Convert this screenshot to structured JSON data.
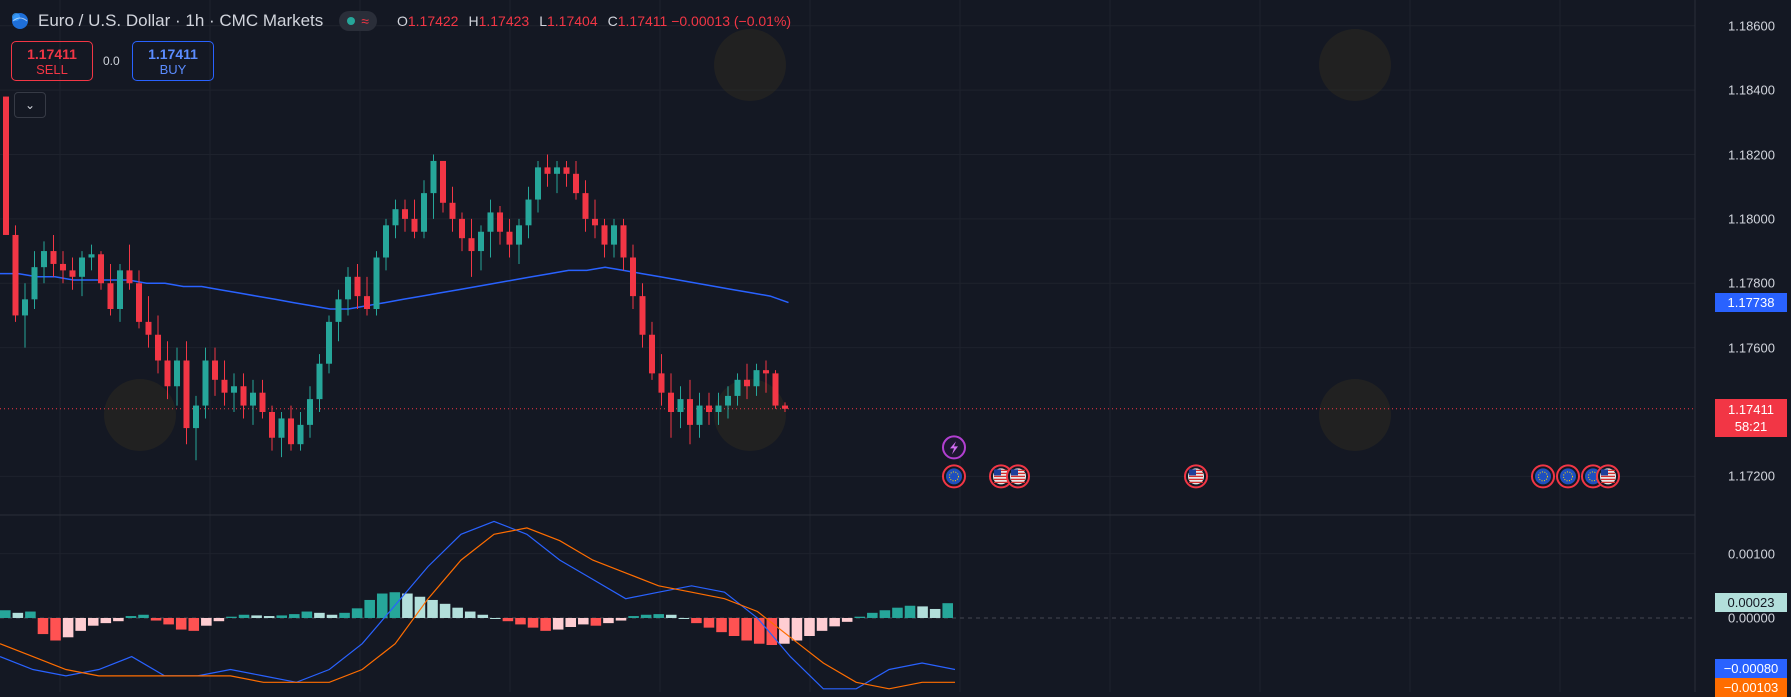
{
  "legend": {
    "symbol": "Euro / U.S. Dollar · 1h · CMC Markets",
    "ohlc": [
      {
        "k": "O",
        "v": "1.17422"
      },
      {
        "k": "H",
        "v": "1.17423"
      },
      {
        "k": "L",
        "v": "1.17404"
      },
      {
        "k": "C",
        "v": "1.17411 −0.00013 (−0.01%)"
      }
    ]
  },
  "trade": {
    "sell_price": "1.17411",
    "sell_label": "SELL",
    "buy_price": "1.17411",
    "buy_label": "BUY",
    "spread": "0.0"
  },
  "collapse_icon": "chevron-down-icon",
  "price_axis": [
    {
      "label": "1.18600",
      "value": 1.186
    },
    {
      "label": "1.18400",
      "value": 1.184
    },
    {
      "label": "1.18200",
      "value": 1.182
    },
    {
      "label": "1.18000",
      "value": 1.18
    },
    {
      "label": "1.17800",
      "value": 1.178
    },
    {
      "label": "1.17600",
      "value": 1.176
    },
    {
      "label": "1.17200",
      "value": 1.172
    }
  ],
  "macd_axis": [
    {
      "label": "0.00100",
      "value": 0.001
    },
    {
      "label": "0.00000",
      "value": 0
    }
  ],
  "price_tags": {
    "ma_value": "1.17738",
    "last_price": "1.17411",
    "countdown": "58:21",
    "hist_value": "0.00023",
    "macd_value": "−0.00080",
    "signal_value": "−0.00103"
  },
  "event_icons": [
    "lightning-icon",
    "eu-flag-icon",
    "us-flag-icon"
  ],
  "colors": {
    "background": "#141823",
    "up": "#26a69a",
    "down": "#f23645",
    "ma": "#2962ff",
    "macd": "#2962ff",
    "signal": "#ff6d00",
    "hist_up_strong": "#26a69a",
    "hist_up_weak": "#b2dfdb",
    "hist_down_strong": "#ff5252",
    "hist_down_weak": "#ffcdd2"
  },
  "chart_data": {
    "type": "candlestick",
    "price_range": [
      1.1708,
      1.1868
    ],
    "macd_range": [
      -0.00115,
      0.0016
    ],
    "candles": [
      [
        1.1838,
        1.1838,
        1.1795,
        1.1795
      ],
      [
        1.1795,
        1.1798,
        1.1768,
        1.177
      ],
      [
        1.177,
        1.178,
        1.176,
        1.1775
      ],
      [
        1.1775,
        1.179,
        1.1772,
        1.1785
      ],
      [
        1.1785,
        1.1793,
        1.178,
        1.179
      ],
      [
        1.179,
        1.1795,
        1.1782,
        1.1786
      ],
      [
        1.1786,
        1.179,
        1.178,
        1.1784
      ],
      [
        1.1784,
        1.1788,
        1.1778,
        1.1782
      ],
      [
        1.1782,
        1.179,
        1.1776,
        1.1788
      ],
      [
        1.1788,
        1.1792,
        1.1784,
        1.1789
      ],
      [
        1.1789,
        1.179,
        1.1778,
        1.178
      ],
      [
        1.178,
        1.1786,
        1.177,
        1.1772
      ],
      [
        1.1772,
        1.1786,
        1.1768,
        1.1784
      ],
      [
        1.1784,
        1.1792,
        1.1778,
        1.178
      ],
      [
        1.178,
        1.1784,
        1.1766,
        1.1768
      ],
      [
        1.1768,
        1.1776,
        1.176,
        1.1764
      ],
      [
        1.1764,
        1.177,
        1.1752,
        1.1756
      ],
      [
        1.1756,
        1.1762,
        1.1744,
        1.1748
      ],
      [
        1.1748,
        1.176,
        1.1742,
        1.1756
      ],
      [
        1.1756,
        1.1762,
        1.173,
        1.1735
      ],
      [
        1.1735,
        1.1745,
        1.1725,
        1.1742
      ],
      [
        1.1742,
        1.176,
        1.1738,
        1.1756
      ],
      [
        1.1756,
        1.176,
        1.1745,
        1.175
      ],
      [
        1.175,
        1.1756,
        1.1742,
        1.1746
      ],
      [
        1.1746,
        1.1752,
        1.174,
        1.1748
      ],
      [
        1.1748,
        1.1752,
        1.1738,
        1.1742
      ],
      [
        1.1742,
        1.175,
        1.1736,
        1.1746
      ],
      [
        1.1746,
        1.175,
        1.1738,
        1.174
      ],
      [
        1.174,
        1.1742,
        1.1728,
        1.1732
      ],
      [
        1.1732,
        1.174,
        1.1726,
        1.1738
      ],
      [
        1.1738,
        1.1742,
        1.1728,
        1.173
      ],
      [
        1.173,
        1.174,
        1.1728,
        1.1736
      ],
      [
        1.1736,
        1.1748,
        1.1732,
        1.1744
      ],
      [
        1.1744,
        1.1758,
        1.174,
        1.1755
      ],
      [
        1.1755,
        1.177,
        1.1752,
        1.1768
      ],
      [
        1.1768,
        1.1778,
        1.1762,
        1.1775
      ],
      [
        1.1775,
        1.1785,
        1.177,
        1.1782
      ],
      [
        1.1782,
        1.1786,
        1.1772,
        1.1776
      ],
      [
        1.1776,
        1.1782,
        1.177,
        1.1772
      ],
      [
        1.1772,
        1.179,
        1.177,
        1.1788
      ],
      [
        1.1788,
        1.18,
        1.1784,
        1.1798
      ],
      [
        1.1798,
        1.1806,
        1.1794,
        1.1803
      ],
      [
        1.1803,
        1.1806,
        1.1796,
        1.18
      ],
      [
        1.18,
        1.1806,
        1.1794,
        1.1796
      ],
      [
        1.1796,
        1.1812,
        1.1794,
        1.1808
      ],
      [
        1.1808,
        1.182,
        1.18,
        1.1818
      ],
      [
        1.1818,
        1.1818,
        1.1802,
        1.1805
      ],
      [
        1.1805,
        1.181,
        1.1796,
        1.18
      ],
      [
        1.18,
        1.1802,
        1.179,
        1.1794
      ],
      [
        1.1794,
        1.18,
        1.1782,
        1.179
      ],
      [
        1.179,
        1.1798,
        1.1784,
        1.1796
      ],
      [
        1.1796,
        1.1806,
        1.1788,
        1.1802
      ],
      [
        1.1802,
        1.1804,
        1.1792,
        1.1796
      ],
      [
        1.1796,
        1.18,
        1.1788,
        1.1792
      ],
      [
        1.1792,
        1.18,
        1.1786,
        1.1798
      ],
      [
        1.1798,
        1.181,
        1.1794,
        1.1806
      ],
      [
        1.1806,
        1.1818,
        1.1802,
        1.1816
      ],
      [
        1.1816,
        1.182,
        1.181,
        1.1814
      ],
      [
        1.1814,
        1.1818,
        1.1808,
        1.1816
      ],
      [
        1.1816,
        1.1818,
        1.181,
        1.1814
      ],
      [
        1.1814,
        1.1818,
        1.1806,
        1.1808
      ],
      [
        1.1808,
        1.1812,
        1.1796,
        1.18
      ],
      [
        1.18,
        1.1806,
        1.1794,
        1.1798
      ],
      [
        1.1798,
        1.18,
        1.1788,
        1.1792
      ],
      [
        1.1792,
        1.18,
        1.1788,
        1.1798
      ],
      [
        1.1798,
        1.18,
        1.1784,
        1.1788
      ],
      [
        1.1788,
        1.1792,
        1.1772,
        1.1776
      ],
      [
        1.1776,
        1.178,
        1.176,
        1.1764
      ],
      [
        1.1764,
        1.1768,
        1.175,
        1.1752
      ],
      [
        1.1752,
        1.1758,
        1.1742,
        1.1746
      ],
      [
        1.1746,
        1.1752,
        1.1732,
        1.174
      ],
      [
        1.174,
        1.1748,
        1.1735,
        1.1744
      ],
      [
        1.1744,
        1.175,
        1.173,
        1.1736
      ],
      [
        1.1736,
        1.1746,
        1.1732,
        1.1742
      ],
      [
        1.1742,
        1.1746,
        1.1736,
        1.174
      ],
      [
        1.174,
        1.1746,
        1.1736,
        1.1742
      ],
      [
        1.1742,
        1.1748,
        1.1738,
        1.1745
      ],
      [
        1.1745,
        1.1752,
        1.1742,
        1.175
      ],
      [
        1.175,
        1.1755,
        1.1744,
        1.1748
      ],
      [
        1.1748,
        1.1755,
        1.1745,
        1.1753
      ],
      [
        1.1753,
        1.1756,
        1.1746,
        1.1752
      ],
      [
        1.1752,
        1.1753,
        1.1741,
        1.1742
      ],
      [
        1.1742,
        1.1743,
        1.174,
        1.1741
      ]
    ],
    "ma": [
      1.1783,
      1.1783,
      1.1782,
      1.1782,
      1.1781,
      1.1781,
      1.1781,
      1.1781,
      1.178,
      1.178,
      1.1779,
      1.1779,
      1.1778,
      1.1777,
      1.1776,
      1.1775,
      1.1774,
      1.1773,
      1.1772,
      1.1772,
      1.1773,
      1.1774,
      1.1775,
      1.1776,
      1.1777,
      1.1778,
      1.1779,
      1.178,
      1.1781,
      1.1782,
      1.1783,
      1.1784,
      1.1784,
      1.1785,
      1.1784,
      1.1783,
      1.1782,
      1.1781,
      1.178,
      1.1779,
      1.1778,
      1.1777,
      1.1776,
      1.1774
    ],
    "macd": [
      -0.0006,
      -0.0008,
      -0.0009,
      -0.0008,
      -0.0006,
      -0.0009,
      -0.0009,
      -0.0008,
      -0.0009,
      -0.001,
      -0.0008,
      -0.0004,
      0.0002,
      0.0008,
      0.0013,
      0.0015,
      0.0013,
      0.0009,
      0.0006,
      0.0003,
      0.0004,
      0.0005,
      0.0004,
      0.0,
      -0.0006,
      -0.0011,
      -0.0011,
      -0.0008,
      -0.0007,
      -0.0008
    ],
    "signal": [
      -0.0004,
      -0.0006,
      -0.0008,
      -0.0009,
      -0.0009,
      -0.0009,
      -0.0009,
      -0.0009,
      -0.001,
      -0.001,
      -0.001,
      -0.0008,
      -0.0004,
      0.0003,
      0.0009,
      0.0013,
      0.0014,
      0.0012,
      0.0009,
      0.0007,
      0.0005,
      0.0004,
      0.0003,
      0.0001,
      -0.0003,
      -0.0007,
      -0.001,
      -0.0011,
      -0.001,
      -0.001
    ],
    "histogram": [
      0.00012,
      8e-05,
      0.0001,
      -0.00025,
      -0.00035,
      -0.0003,
      -0.0002,
      -0.00012,
      -8e-05,
      -5e-05,
      3e-05,
      5e-05,
      -4e-05,
      -0.0001,
      -0.00018,
      -0.0002,
      -0.00012,
      -5e-05,
      2e-05,
      5e-05,
      4e-05,
      3e-05,
      4e-05,
      6e-05,
      0.0001,
      8e-05,
      5e-05,
      8e-05,
      0.00015,
      0.00028,
      0.00038,
      0.0004,
      0.00038,
      0.00033,
      0.00028,
      0.00022,
      0.00016,
      0.0001,
      5e-05,
      0.0,
      -5e-05,
      -0.0001,
      -0.00015,
      -0.0002,
      -0.00018,
      -0.00014,
      -0.0001,
      -0.00012,
      -8e-05,
      -4e-05,
      3e-05,
      5e-05,
      6e-05,
      5e-05,
      0.0,
      -8e-05,
      -0.00015,
      -0.00022,
      -0.00028,
      -0.00035,
      -0.0004,
      -0.00042,
      -0.0004,
      -0.00035,
      -0.00028,
      -0.0002,
      -0.00013,
      -6e-05,
      2e-05,
      8e-05,
      0.00012,
      0.00016,
      0.00019,
      0.00018,
      0.00014,
      0.00023
    ]
  }
}
